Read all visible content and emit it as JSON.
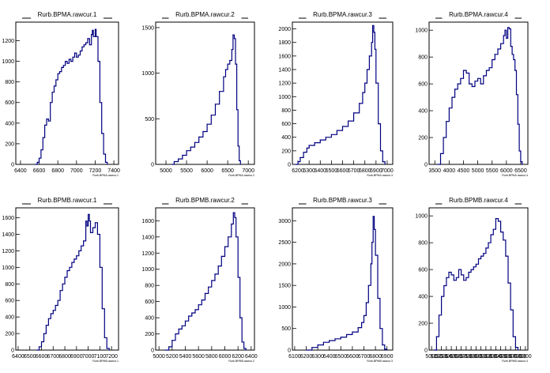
{
  "chart_data": [
    {
      "type": "histogram",
      "title": "Rurb.BPMA.rawcur.1",
      "xlabel": "Rurb.BPMA.rawcur.1",
      "xticks": [
        "6400",
        "6600",
        "6800",
        "7000",
        "7200",
        "7400"
      ],
      "yticks": [
        "0",
        "200",
        "400",
        "600",
        "800",
        "1000",
        "1200"
      ],
      "xlim": [
        6350,
        7450
      ],
      "ylim": [
        0,
        1380
      ],
      "points": [
        [
          6560,
          0
        ],
        [
          6580,
          20
        ],
        [
          6600,
          60
        ],
        [
          6620,
          140
        ],
        [
          6640,
          260
        ],
        [
          6660,
          380
        ],
        [
          6680,
          440
        ],
        [
          6700,
          420
        ],
        [
          6720,
          600
        ],
        [
          6740,
          700
        ],
        [
          6760,
          760
        ],
        [
          6780,
          820
        ],
        [
          6800,
          880
        ],
        [
          6820,
          900
        ],
        [
          6840,
          940
        ],
        [
          6860,
          960
        ],
        [
          6880,
          1000
        ],
        [
          6900,
          980
        ],
        [
          6920,
          1020
        ],
        [
          6940,
          1000
        ],
        [
          6960,
          1040
        ],
        [
          6980,
          1080
        ],
        [
          7000,
          1040
        ],
        [
          7020,
          1060
        ],
        [
          7040,
          1100
        ],
        [
          7060,
          1140
        ],
        [
          7080,
          1160
        ],
        [
          7100,
          1180
        ],
        [
          7120,
          1220
        ],
        [
          7140,
          1160
        ],
        [
          7160,
          1260
        ],
        [
          7170,
          1300
        ],
        [
          7180,
          1240
        ],
        [
          7200,
          1310
        ],
        [
          7210,
          1240
        ],
        [
          7230,
          1000
        ],
        [
          7250,
          600
        ],
        [
          7270,
          300
        ],
        [
          7290,
          100
        ],
        [
          7310,
          20
        ],
        [
          7330,
          0
        ]
      ]
    },
    {
      "type": "histogram",
      "title": "Rurb.BPMA.rawcur.2",
      "xlabel": "Rurb.BPMA.rawcur.2",
      "xticks": [
        "5000",
        "5500",
        "6000",
        "6500",
        "7000"
      ],
      "yticks": [
        "0",
        "500",
        "1000",
        "1500"
      ],
      "xlim": [
        4750,
        7150
      ],
      "ylim": [
        0,
        1560
      ],
      "points": [
        [
          5150,
          0
        ],
        [
          5200,
          30
        ],
        [
          5300,
          60
        ],
        [
          5400,
          100
        ],
        [
          5500,
          150
        ],
        [
          5600,
          190
        ],
        [
          5700,
          240
        ],
        [
          5800,
          300
        ],
        [
          5900,
          360
        ],
        [
          6000,
          440
        ],
        [
          6100,
          540
        ],
        [
          6200,
          660
        ],
        [
          6300,
          800
        ],
        [
          6400,
          960
        ],
        [
          6450,
          1040
        ],
        [
          6500,
          1100
        ],
        [
          6550,
          1140
        ],
        [
          6600,
          1260
        ],
        [
          6630,
          1420
        ],
        [
          6660,
          1380
        ],
        [
          6690,
          1100
        ],
        [
          6720,
          600
        ],
        [
          6750,
          200
        ],
        [
          6780,
          40
        ],
        [
          6810,
          0
        ]
      ]
    },
    {
      "type": "histogram",
      "title": "Rurb.BPMA.rawcur.3",
      "xlabel": "Rurb.BPMA.rawcur.3",
      "xticks": [
        "6200",
        "6300",
        "6400",
        "6500",
        "6600",
        "6700",
        "6800",
        "6900",
        "7000"
      ],
      "yticks": [
        "0",
        "200",
        "400",
        "600",
        "800",
        "1000",
        "1200",
        "1400",
        "1600",
        "1800",
        "2000"
      ],
      "xlim": [
        6150,
        7050
      ],
      "ylim": [
        0,
        2100
      ],
      "points": [
        [
          6180,
          0
        ],
        [
          6200,
          40
        ],
        [
          6220,
          100
        ],
        [
          6250,
          180
        ],
        [
          6280,
          240
        ],
        [
          6300,
          280
        ],
        [
          6350,
          320
        ],
        [
          6400,
          360
        ],
        [
          6450,
          400
        ],
        [
          6500,
          440
        ],
        [
          6550,
          500
        ],
        [
          6600,
          560
        ],
        [
          6650,
          640
        ],
        [
          6700,
          760
        ],
        [
          6750,
          900
        ],
        [
          6780,
          1060
        ],
        [
          6800,
          1200
        ],
        [
          6820,
          1400
        ],
        [
          6840,
          1600
        ],
        [
          6860,
          1800
        ],
        [
          6870,
          2050
        ],
        [
          6880,
          1950
        ],
        [
          6890,
          1700
        ],
        [
          6900,
          1200
        ],
        [
          6920,
          600
        ],
        [
          6940,
          200
        ],
        [
          6960,
          40
        ],
        [
          6980,
          0
        ]
      ]
    },
    {
      "type": "histogram",
      "title": "Rurb.BPMA.rawcur.4",
      "xlabel": "Rurb.BPMA.rawcur.4",
      "xticks": [
        "3500",
        "4000",
        "4500",
        "5000",
        "5500",
        "6000",
        "6500"
      ],
      "yticks": [
        "0",
        "200",
        "400",
        "600",
        "800",
        "1000"
      ],
      "xlim": [
        3300,
        6750
      ],
      "ylim": [
        0,
        1060
      ],
      "points": [
        [
          3600,
          0
        ],
        [
          3700,
          80
        ],
        [
          3800,
          200
        ],
        [
          3900,
          320
        ],
        [
          4000,
          420
        ],
        [
          4100,
          500
        ],
        [
          4200,
          560
        ],
        [
          4300,
          600
        ],
        [
          4400,
          640
        ],
        [
          4500,
          700
        ],
        [
          4600,
          680
        ],
        [
          4700,
          600
        ],
        [
          4800,
          580
        ],
        [
          4900,
          620
        ],
        [
          5000,
          640
        ],
        [
          5100,
          600
        ],
        [
          5200,
          660
        ],
        [
          5300,
          700
        ],
        [
          5400,
          720
        ],
        [
          5500,
          780
        ],
        [
          5600,
          820
        ],
        [
          5700,
          860
        ],
        [
          5800,
          900
        ],
        [
          5900,
          960
        ],
        [
          5950,
          1000
        ],
        [
          6000,
          940
        ],
        [
          6050,
          1020
        ],
        [
          6100,
          1010
        ],
        [
          6150,
          880
        ],
        [
          6200,
          820
        ],
        [
          6250,
          780
        ],
        [
          6300,
          700
        ],
        [
          6350,
          520
        ],
        [
          6400,
          300
        ],
        [
          6450,
          100
        ],
        [
          6500,
          20
        ],
        [
          6550,
          0
        ]
      ]
    },
    {
      "type": "histogram",
      "title": "Rurb.BPMB.rawcur.1",
      "xlabel": "Rurb.BPMB.rawcur.1",
      "xticks": [
        "6400",
        "6500",
        "6600",
        "6700",
        "6800",
        "6900",
        "7000",
        "7100",
        "7200"
      ],
      "yticks": [
        "0",
        "200",
        "400",
        "600",
        "800",
        "1000",
        "1200",
        "1400",
        "1600"
      ],
      "xlim": [
        6380,
        7260
      ],
      "ylim": [
        0,
        1720
      ],
      "points": [
        [
          6560,
          0
        ],
        [
          6580,
          40
        ],
        [
          6600,
          100
        ],
        [
          6620,
          200
        ],
        [
          6640,
          300
        ],
        [
          6660,
          380
        ],
        [
          6680,
          440
        ],
        [
          6700,
          480
        ],
        [
          6720,
          540
        ],
        [
          6740,
          600
        ],
        [
          6760,
          720
        ],
        [
          6780,
          800
        ],
        [
          6800,
          880
        ],
        [
          6820,
          960
        ],
        [
          6840,
          1000
        ],
        [
          6860,
          1060
        ],
        [
          6880,
          1100
        ],
        [
          6900,
          1140
        ],
        [
          6920,
          1200
        ],
        [
          6940,
          1260
        ],
        [
          6960,
          1320
        ],
        [
          6980,
          1560
        ],
        [
          6990,
          1500
        ],
        [
          7000,
          1640
        ],
        [
          7010,
          1560
        ],
        [
          7020,
          1420
        ],
        [
          7040,
          1480
        ],
        [
          7060,
          1540
        ],
        [
          7080,
          1400
        ],
        [
          7100,
          1000
        ],
        [
          7120,
          500
        ],
        [
          7140,
          150
        ],
        [
          7160,
          20
        ],
        [
          7180,
          0
        ]
      ]
    },
    {
      "type": "histogram",
      "title": "Rurb.BPMB.rawcur.2",
      "xlabel": "Rurb.BPMB.rawcur.2",
      "xticks": [
        "5000",
        "5200",
        "5400",
        "5600",
        "5800",
        "6000",
        "6200",
        "6400"
      ],
      "yticks": [
        "0",
        "200",
        "400",
        "600",
        "800",
        "1000",
        "1200",
        "1400",
        "1600"
      ],
      "xlim": [
        4950,
        6450
      ],
      "ylim": [
        0,
        1760
      ],
      "points": [
        [
          5100,
          0
        ],
        [
          5150,
          40
        ],
        [
          5200,
          120
        ],
        [
          5250,
          200
        ],
        [
          5300,
          260
        ],
        [
          5350,
          300
        ],
        [
          5400,
          360
        ],
        [
          5450,
          420
        ],
        [
          5500,
          460
        ],
        [
          5550,
          500
        ],
        [
          5600,
          560
        ],
        [
          5650,
          620
        ],
        [
          5700,
          700
        ],
        [
          5750,
          780
        ],
        [
          5800,
          860
        ],
        [
          5850,
          940
        ],
        [
          5900,
          1040
        ],
        [
          5950,
          1160
        ],
        [
          6000,
          1280
        ],
        [
          6050,
          1400
        ],
        [
          6100,
          1560
        ],
        [
          6130,
          1700
        ],
        [
          6150,
          1640
        ],
        [
          6170,
          1400
        ],
        [
          6200,
          900
        ],
        [
          6230,
          400
        ],
        [
          6260,
          100
        ],
        [
          6290,
          20
        ],
        [
          6320,
          0
        ]
      ]
    },
    {
      "type": "histogram",
      "title": "Rurb.BPMB.rawcur.3",
      "xlabel": "Rurb.BPMB.rawcur.3",
      "xticks": [
        "6100",
        "6200",
        "6300",
        "6400",
        "6500",
        "6600",
        "6700",
        "6800",
        "6900"
      ],
      "yticks": [
        "0",
        "500",
        "1000",
        "1500",
        "2000",
        "2500",
        "3000"
      ],
      "xlim": [
        6080,
        6950
      ],
      "ylim": [
        0,
        3300
      ],
      "points": [
        [
          6200,
          0
        ],
        [
          6250,
          60
        ],
        [
          6300,
          120
        ],
        [
          6350,
          180
        ],
        [
          6400,
          220
        ],
        [
          6450,
          260
        ],
        [
          6500,
          300
        ],
        [
          6550,
          360
        ],
        [
          6600,
          420
        ],
        [
          6650,
          520
        ],
        [
          6680,
          640
        ],
        [
          6700,
          800
        ],
        [
          6720,
          1100
        ],
        [
          6740,
          1500
        ],
        [
          6760,
          2000
        ],
        [
          6770,
          2500
        ],
        [
          6780,
          3100
        ],
        [
          6790,
          2800
        ],
        [
          6800,
          2200
        ],
        [
          6820,
          1200
        ],
        [
          6840,
          500
        ],
        [
          6860,
          120
        ],
        [
          6880,
          20
        ],
        [
          6900,
          0
        ]
      ]
    },
    {
      "type": "histogram",
      "title": "Rurb.BPMB.rawcur.4",
      "xlabel": "Rurb.BPMB.rawcur.4",
      "xticks": [
        "5000",
        "5100",
        "5200",
        "5300",
        "5400",
        "5500",
        "5600",
        "5700",
        "5800",
        "5900",
        "6000",
        "6100",
        "6200",
        "6300",
        "6400",
        "6500",
        "6600",
        "6700",
        "6800",
        "6900"
      ],
      "yticks": [
        "0",
        "200",
        "400",
        "600",
        "800",
        "1000"
      ],
      "xlim": [
        4950,
        6950
      ],
      "ylim": [
        0,
        1060
      ],
      "points": [
        [
          5050,
          0
        ],
        [
          5100,
          100
        ],
        [
          5150,
          260
        ],
        [
          5200,
          400
        ],
        [
          5250,
          480
        ],
        [
          5300,
          540
        ],
        [
          5350,
          580
        ],
        [
          5400,
          560
        ],
        [
          5450,
          520
        ],
        [
          5500,
          540
        ],
        [
          5550,
          600
        ],
        [
          5600,
          560
        ],
        [
          5650,
          520
        ],
        [
          5700,
          540
        ],
        [
          5750,
          580
        ],
        [
          5800,
          600
        ],
        [
          5850,
          620
        ],
        [
          5900,
          640
        ],
        [
          5950,
          680
        ],
        [
          6000,
          700
        ],
        [
          6050,
          720
        ],
        [
          6100,
          760
        ],
        [
          6150,
          800
        ],
        [
          6200,
          860
        ],
        [
          6250,
          900
        ],
        [
          6300,
          980
        ],
        [
          6350,
          960
        ],
        [
          6400,
          880
        ],
        [
          6450,
          820
        ],
        [
          6500,
          700
        ],
        [
          6550,
          500
        ],
        [
          6600,
          300
        ],
        [
          6650,
          100
        ],
        [
          6700,
          20
        ],
        [
          6750,
          0
        ]
      ]
    }
  ]
}
